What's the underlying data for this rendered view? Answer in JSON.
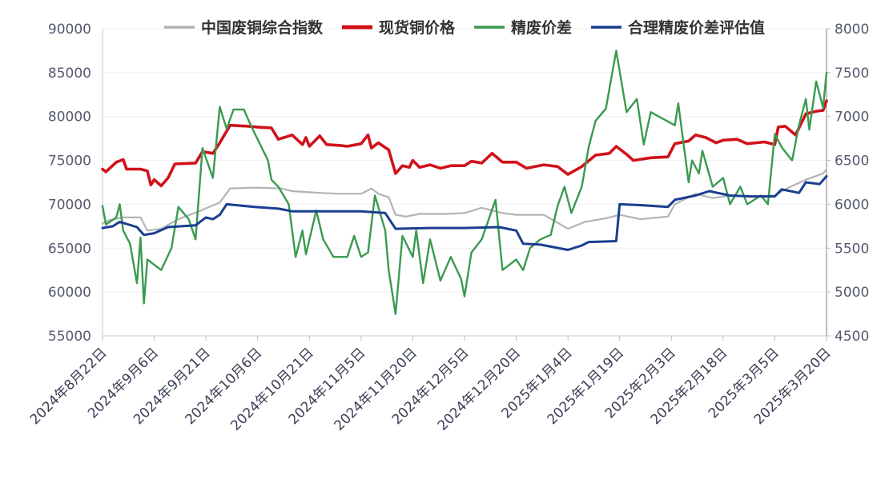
{
  "chart_data": {
    "type": "line",
    "title": "",
    "xlabel": "",
    "ylabel": "",
    "y2label": "",
    "ylim": [
      55000,
      90000
    ],
    "y2lim": [
      4500,
      8000
    ],
    "yticks": [
      "55000",
      "60000",
      "65000",
      "70000",
      "75000",
      "80000",
      "85000",
      "90000"
    ],
    "y2ticks": [
      "4500",
      "5000",
      "5500",
      "6000",
      "6500",
      "7000",
      "7500",
      "8000"
    ],
    "xlim": [
      "2024-08-22",
      "2025-03-20"
    ],
    "xticks": [
      "2024-08-22",
      "2024-09-06",
      "2024-09-21",
      "2024-10-06",
      "2024-10-21",
      "2024-11-05",
      "2024-11-20",
      "2024-12-05",
      "2024-12-20",
      "2025-01-04",
      "2025-01-19",
      "2025-02-03",
      "2025-02-18",
      "2025-03-05",
      "2025-03-20"
    ],
    "xtick_labels": [
      "2024年8月22日",
      "2024年9月6日",
      "2024年9月21日",
      "2024年10月6日",
      "2024年10月21日",
      "2024年11月5日",
      "2024年11月20日",
      "2024年12月5日",
      "2024年12月20日",
      "2025年1月4日",
      "2025年1月19日",
      "2025年2月3日",
      "2025年2月18日",
      "2025年3月5日",
      "2025年3月20日"
    ],
    "legend_position": "top",
    "grid": "horizontal",
    "series": [
      {
        "name": "中国废铜综合指数",
        "axis": "left",
        "color": "#b3b3b8",
        "points": [
          [
            "2024-08-22",
            67800
          ],
          [
            "2024-08-24",
            68200
          ],
          [
            "2024-08-28",
            68500
          ],
          [
            "2024-09-02",
            68500
          ],
          [
            "2024-09-04",
            67000
          ],
          [
            "2024-09-08",
            67200
          ],
          [
            "2024-09-13",
            68300
          ],
          [
            "2024-09-19",
            69200
          ],
          [
            "2024-09-25",
            70200
          ],
          [
            "2024-09-28",
            71800
          ],
          [
            "2024-10-05",
            71900
          ],
          [
            "2024-10-13",
            71800
          ],
          [
            "2024-10-16",
            71500
          ],
          [
            "2024-10-24",
            71300
          ],
          [
            "2024-10-30",
            71200
          ],
          [
            "2024-11-05",
            71200
          ],
          [
            "2024-11-08",
            71800
          ],
          [
            "2024-11-10",
            71200
          ],
          [
            "2024-11-13",
            70800
          ],
          [
            "2024-11-15",
            68800
          ],
          [
            "2024-11-18",
            68600
          ],
          [
            "2024-11-22",
            68900
          ],
          [
            "2024-11-30",
            68900
          ],
          [
            "2024-12-05",
            69000
          ],
          [
            "2024-12-10",
            69600
          ],
          [
            "2024-12-16",
            69000
          ],
          [
            "2024-12-20",
            68800
          ],
          [
            "2024-12-28",
            68800
          ],
          [
            "2025-01-04",
            67200
          ],
          [
            "2025-01-09",
            68000
          ],
          [
            "2025-01-15",
            68400
          ],
          [
            "2025-01-19",
            68800
          ],
          [
            "2025-01-25",
            68300
          ],
          [
            "2025-02-02",
            68600
          ],
          [
            "2025-02-04",
            70000
          ],
          [
            "2025-02-10",
            71200
          ],
          [
            "2025-02-15",
            70700
          ],
          [
            "2025-02-20",
            71000
          ],
          [
            "2025-02-26",
            70900
          ],
          [
            "2025-03-05",
            71000
          ],
          [
            "2025-03-09",
            71900
          ],
          [
            "2025-03-14",
            72800
          ],
          [
            "2025-03-19",
            73500
          ],
          [
            "2025-03-20",
            74000
          ]
        ]
      },
      {
        "name": "现货铜价格",
        "axis": "left",
        "color": "#d0121b",
        "points": [
          [
            "2024-08-22",
            74000
          ],
          [
            "2024-08-23",
            73700
          ],
          [
            "2024-08-26",
            74800
          ],
          [
            "2024-08-28",
            75100
          ],
          [
            "2024-08-29",
            74000
          ],
          [
            "2024-09-02",
            74000
          ],
          [
            "2024-09-04",
            73800
          ],
          [
            "2024-09-05",
            72200
          ],
          [
            "2024-09-06",
            72800
          ],
          [
            "2024-09-08",
            72100
          ],
          [
            "2024-09-10",
            73000
          ],
          [
            "2024-09-12",
            74600
          ],
          [
            "2024-09-18",
            74700
          ],
          [
            "2024-09-20",
            76000
          ],
          [
            "2024-09-23",
            75800
          ],
          [
            "2024-09-25",
            77000
          ],
          [
            "2024-09-28",
            79000
          ],
          [
            "2024-10-03",
            78900
          ],
          [
            "2024-10-06",
            78800
          ],
          [
            "2024-10-10",
            78700
          ],
          [
            "2024-10-12",
            77400
          ],
          [
            "2024-10-16",
            77900
          ],
          [
            "2024-10-19",
            76800
          ],
          [
            "2024-10-20",
            77600
          ],
          [
            "2024-10-21",
            76600
          ],
          [
            "2024-10-24",
            77800
          ],
          [
            "2024-10-26",
            76800
          ],
          [
            "2024-10-30",
            76700
          ],
          [
            "2024-11-01",
            76600
          ],
          [
            "2024-11-05",
            76900
          ],
          [
            "2024-11-07",
            77900
          ],
          [
            "2024-11-08",
            76400
          ],
          [
            "2024-11-10",
            77000
          ],
          [
            "2024-11-13",
            76200
          ],
          [
            "2024-11-15",
            73500
          ],
          [
            "2024-11-17",
            74400
          ],
          [
            "2024-11-19",
            74200
          ],
          [
            "2024-11-20",
            75000
          ],
          [
            "2024-11-22",
            74200
          ],
          [
            "2024-11-25",
            74500
          ],
          [
            "2024-11-28",
            74100
          ],
          [
            "2024-12-01",
            74400
          ],
          [
            "2024-12-05",
            74400
          ],
          [
            "2024-12-07",
            74900
          ],
          [
            "2024-12-10",
            74700
          ],
          [
            "2024-12-13",
            75800
          ],
          [
            "2024-12-16",
            74800
          ],
          [
            "2024-12-20",
            74800
          ],
          [
            "2024-12-23",
            74100
          ],
          [
            "2024-12-28",
            74500
          ],
          [
            "2025-01-01",
            74300
          ],
          [
            "2025-01-04",
            73400
          ],
          [
            "2025-01-08",
            74300
          ],
          [
            "2025-01-12",
            75600
          ],
          [
            "2025-01-16",
            75800
          ],
          [
            "2025-01-18",
            76600
          ],
          [
            "2025-01-21",
            75700
          ],
          [
            "2025-01-23",
            75000
          ],
          [
            "2025-01-28",
            75300
          ],
          [
            "2025-02-02",
            75400
          ],
          [
            "2025-02-04",
            76900
          ],
          [
            "2025-02-08",
            77200
          ],
          [
            "2025-02-10",
            77900
          ],
          [
            "2025-02-13",
            77600
          ],
          [
            "2025-02-16",
            77000
          ],
          [
            "2025-02-18",
            77300
          ],
          [
            "2025-02-22",
            77400
          ],
          [
            "2025-02-25",
            76900
          ],
          [
            "2025-03-02",
            77100
          ],
          [
            "2025-03-05",
            76800
          ],
          [
            "2025-03-06",
            78800
          ],
          [
            "2025-03-08",
            78900
          ],
          [
            "2025-03-11",
            77900
          ],
          [
            "2025-03-14",
            80300
          ],
          [
            "2025-03-17",
            80600
          ],
          [
            "2025-03-19",
            80700
          ],
          [
            "2025-03-20",
            81800
          ]
        ]
      },
      {
        "name": "精废价差",
        "axis": "right",
        "color": "#3a9a4f",
        "points": [
          [
            "2024-08-22",
            5980
          ],
          [
            "2024-08-23",
            5770
          ],
          [
            "2024-08-26",
            5850
          ],
          [
            "2024-08-27",
            6000
          ],
          [
            "2024-08-28",
            5700
          ],
          [
            "2024-08-30",
            5550
          ],
          [
            "2024-09-01",
            5100
          ],
          [
            "2024-09-02",
            5620
          ],
          [
            "2024-09-03",
            4870
          ],
          [
            "2024-09-04",
            5370
          ],
          [
            "2024-09-08",
            5250
          ],
          [
            "2024-09-11",
            5500
          ],
          [
            "2024-09-13",
            5970
          ],
          [
            "2024-09-16",
            5830
          ],
          [
            "2024-09-18",
            5600
          ],
          [
            "2024-09-20",
            6640
          ],
          [
            "2024-09-23",
            6300
          ],
          [
            "2024-09-25",
            7110
          ],
          [
            "2024-09-27",
            6860
          ],
          [
            "2024-09-29",
            7080
          ],
          [
            "2024-10-02",
            7080
          ],
          [
            "2024-10-04",
            6900
          ],
          [
            "2024-10-09",
            6500
          ],
          [
            "2024-10-10",
            6280
          ],
          [
            "2024-10-12",
            6200
          ],
          [
            "2024-10-15",
            6000
          ],
          [
            "2024-10-17",
            5400
          ],
          [
            "2024-10-19",
            5700
          ],
          [
            "2024-10-20",
            5430
          ],
          [
            "2024-10-23",
            5930
          ],
          [
            "2024-10-25",
            5600
          ],
          [
            "2024-10-28",
            5400
          ],
          [
            "2024-11-01",
            5400
          ],
          [
            "2024-11-03",
            5640
          ],
          [
            "2024-11-05",
            5400
          ],
          [
            "2024-11-07",
            5450
          ],
          [
            "2024-11-09",
            6100
          ],
          [
            "2024-11-12",
            5700
          ],
          [
            "2024-11-13",
            5250
          ],
          [
            "2024-11-15",
            4750
          ],
          [
            "2024-11-17",
            5640
          ],
          [
            "2024-11-20",
            5400
          ],
          [
            "2024-11-21",
            5700
          ],
          [
            "2024-11-23",
            5100
          ],
          [
            "2024-11-25",
            5600
          ],
          [
            "2024-11-28",
            5130
          ],
          [
            "2024-12-01",
            5400
          ],
          [
            "2024-12-04",
            5150
          ],
          [
            "2024-12-05",
            4950
          ],
          [
            "2024-12-07",
            5450
          ],
          [
            "2024-12-10",
            5600
          ],
          [
            "2024-12-14",
            6050
          ],
          [
            "2024-12-16",
            5250
          ],
          [
            "2024-12-20",
            5370
          ],
          [
            "2024-12-22",
            5250
          ],
          [
            "2024-12-24",
            5500
          ],
          [
            "2024-12-27",
            5600
          ],
          [
            "2024-12-30",
            5650
          ],
          [
            "2025-01-01",
            5980
          ],
          [
            "2025-01-03",
            6200
          ],
          [
            "2025-01-05",
            5900
          ],
          [
            "2025-01-08",
            6200
          ],
          [
            "2025-01-10",
            6650
          ],
          [
            "2025-01-12",
            6950
          ],
          [
            "2025-01-15",
            7090
          ],
          [
            "2025-01-18",
            7750
          ],
          [
            "2025-01-21",
            7050
          ],
          [
            "2025-01-24",
            7200
          ],
          [
            "2025-01-26",
            6680
          ],
          [
            "2025-01-28",
            7050
          ],
          [
            "2025-02-04",
            6900
          ],
          [
            "2025-02-05",
            7150
          ],
          [
            "2025-02-08",
            6250
          ],
          [
            "2025-02-09",
            6500
          ],
          [
            "2025-02-11",
            6350
          ],
          [
            "2025-02-12",
            6610
          ],
          [
            "2025-02-15",
            6200
          ],
          [
            "2025-02-18",
            6300
          ],
          [
            "2025-02-20",
            6000
          ],
          [
            "2025-02-23",
            6200
          ],
          [
            "2025-02-25",
            6000
          ],
          [
            "2025-03-01",
            6100
          ],
          [
            "2025-03-03",
            6000
          ],
          [
            "2025-03-05",
            6800
          ],
          [
            "2025-03-07",
            6650
          ],
          [
            "2025-03-10",
            6500
          ],
          [
            "2025-03-12",
            6900
          ],
          [
            "2025-03-14",
            7200
          ],
          [
            "2025-03-15",
            6850
          ],
          [
            "2025-03-17",
            7400
          ],
          [
            "2025-03-19",
            7100
          ],
          [
            "2025-03-20",
            7500
          ]
        ]
      },
      {
        "name": "合理精废价差评估值",
        "axis": "right",
        "color": "#1a3e8f",
        "points": [
          [
            "2024-08-22",
            5730
          ],
          [
            "2024-08-25",
            5750
          ],
          [
            "2024-08-27",
            5800
          ],
          [
            "2024-09-01",
            5740
          ],
          [
            "2024-09-03",
            5650
          ],
          [
            "2024-09-06",
            5670
          ],
          [
            "2024-09-10",
            5740
          ],
          [
            "2024-09-18",
            5760
          ],
          [
            "2024-09-21",
            5850
          ],
          [
            "2024-09-23",
            5830
          ],
          [
            "2024-09-25",
            5880
          ],
          [
            "2024-09-27",
            6000
          ],
          [
            "2024-10-05",
            5970
          ],
          [
            "2024-10-12",
            5950
          ],
          [
            "2024-10-16",
            5920
          ],
          [
            "2024-10-28",
            5920
          ],
          [
            "2024-11-05",
            5920
          ],
          [
            "2024-11-12",
            5900
          ],
          [
            "2024-11-15",
            5720
          ],
          [
            "2024-11-25",
            5730
          ],
          [
            "2024-12-05",
            5730
          ],
          [
            "2024-12-15",
            5740
          ],
          [
            "2024-12-20",
            5700
          ],
          [
            "2024-12-22",
            5550
          ],
          [
            "2024-12-27",
            5540
          ],
          [
            "2025-01-04",
            5480
          ],
          [
            "2025-01-08",
            5530
          ],
          [
            "2025-01-10",
            5570
          ],
          [
            "2025-01-18",
            5580
          ],
          [
            "2025-01-19",
            6000
          ],
          [
            "2025-01-25",
            5990
          ],
          [
            "2025-02-02",
            5970
          ],
          [
            "2025-02-04",
            6050
          ],
          [
            "2025-02-10",
            6100
          ],
          [
            "2025-02-14",
            6150
          ],
          [
            "2025-02-20",
            6100
          ],
          [
            "2025-02-26",
            6090
          ],
          [
            "2025-03-05",
            6090
          ],
          [
            "2025-03-07",
            6170
          ],
          [
            "2025-03-12",
            6130
          ],
          [
            "2025-03-14",
            6250
          ],
          [
            "2025-03-18",
            6230
          ],
          [
            "2025-03-20",
            6320
          ]
        ]
      }
    ]
  }
}
